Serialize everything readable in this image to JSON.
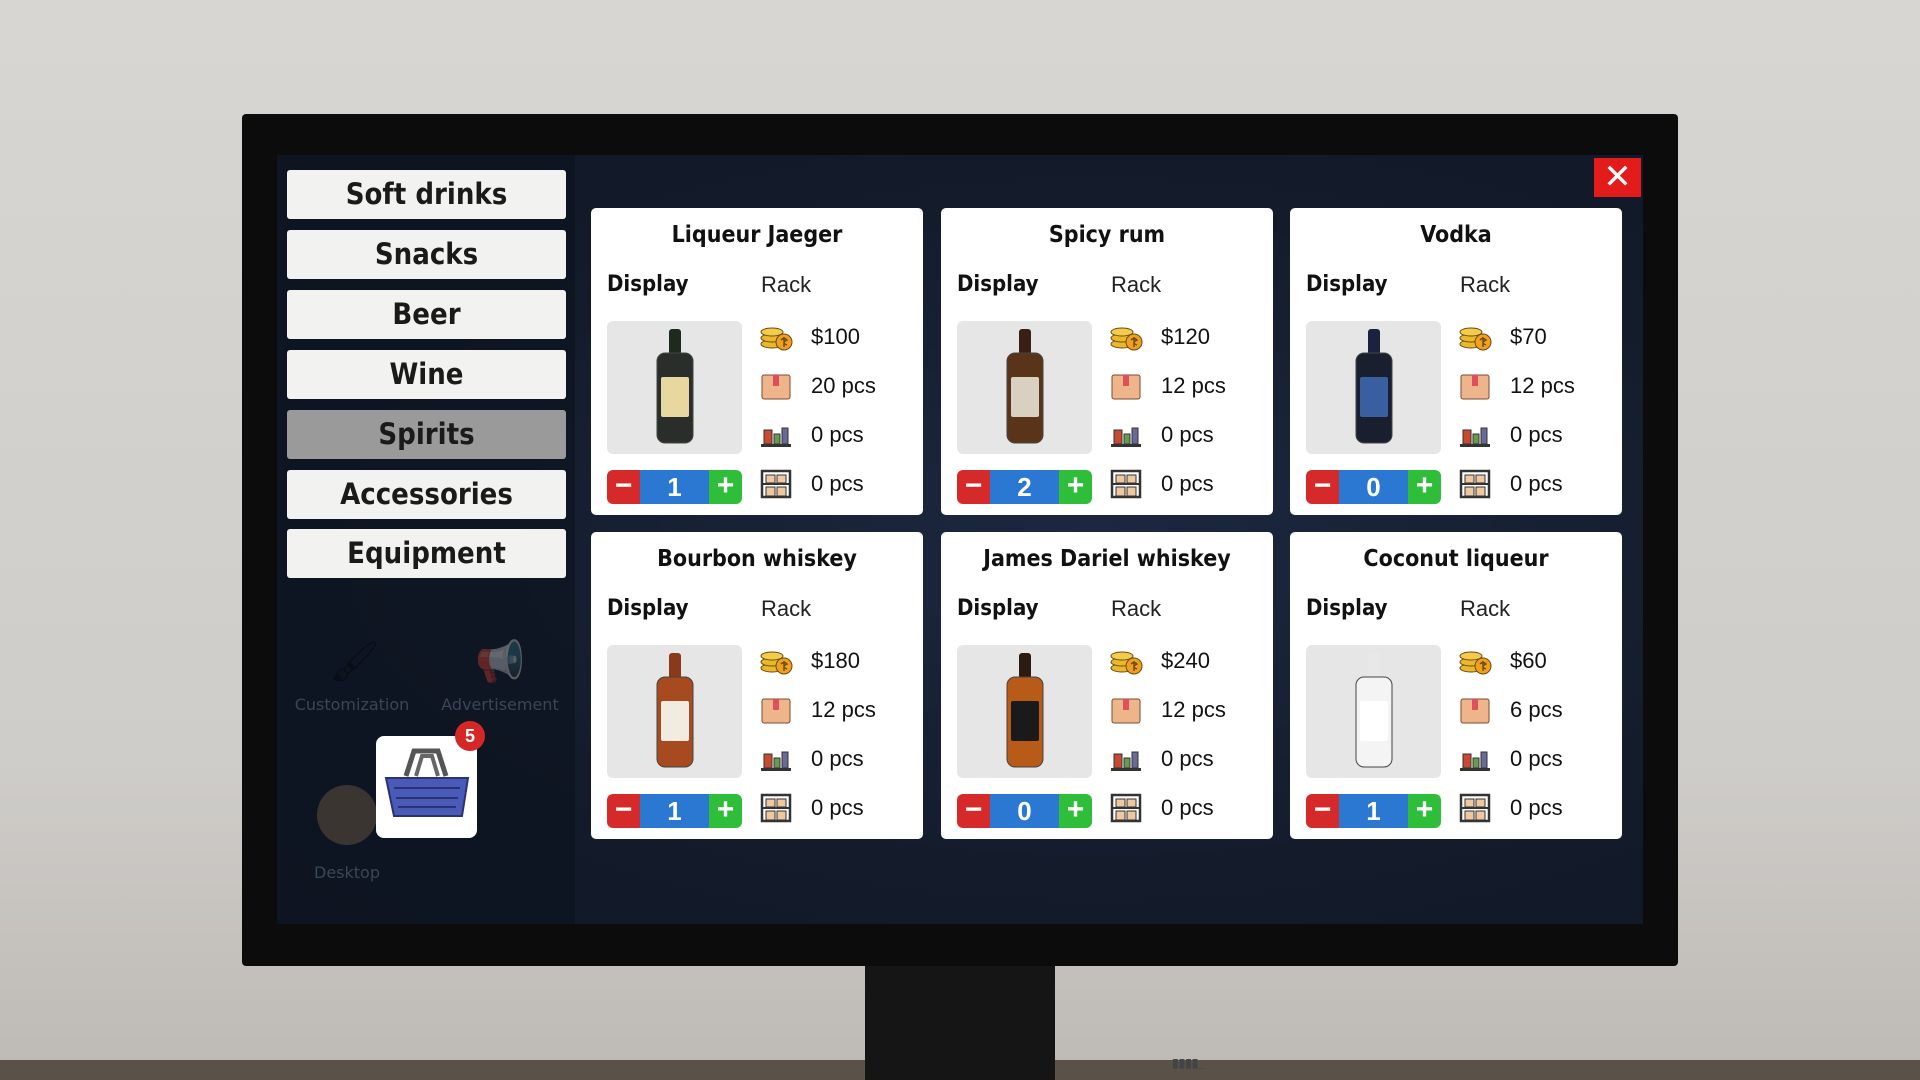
{
  "sidebar": {
    "items": [
      {
        "label": "Soft drinks",
        "active": false
      },
      {
        "label": "Snacks",
        "active": false
      },
      {
        "label": "Beer",
        "active": false
      },
      {
        "label": "Wine",
        "active": false
      },
      {
        "label": "Spirits",
        "active": true
      },
      {
        "label": "Accessories",
        "active": false
      },
      {
        "label": "Equipment",
        "active": false
      }
    ],
    "background_apps": [
      "Customization",
      "Advertisement",
      "Desktop"
    ],
    "cart": {
      "badge": "5",
      "icon": "basket-icon"
    }
  },
  "close_label": "✕",
  "labels": {
    "display": "Display",
    "rack": "Rack",
    "minus": "−",
    "plus": "+"
  },
  "products": [
    {
      "name": "Liqueur Jaeger",
      "price": "$100",
      "box": "20 pcs",
      "display": "0 pcs",
      "rack": "0 pcs",
      "qty": "1"
    },
    {
      "name": "Spicy rum",
      "price": "$120",
      "box": "12 pcs",
      "display": "0 pcs",
      "rack": "0 pcs",
      "qty": "2"
    },
    {
      "name": "Vodka",
      "price": "$70",
      "box": "12 pcs",
      "display": "0 pcs",
      "rack": "0 pcs",
      "qty": "0"
    },
    {
      "name": "Bourbon whiskey",
      "price": "$180",
      "box": "12 pcs",
      "display": "0 pcs",
      "rack": "0 pcs",
      "qty": "1"
    },
    {
      "name": "James Dariel whiskey",
      "price": "$240",
      "box": "12 pcs",
      "display": "0 pcs",
      "rack": "0 pcs",
      "qty": "0"
    },
    {
      "name": "Coconut liqueur",
      "price": "$60",
      "box": "6 pcs",
      "display": "0 pcs",
      "rack": "0 pcs",
      "qty": "1"
    }
  ],
  "colors": {
    "minus": "#d62929",
    "qty": "#2a78d2",
    "plus": "#2fbe3a",
    "close": "#e31b1b",
    "active_tab": "#9a9a9a"
  }
}
